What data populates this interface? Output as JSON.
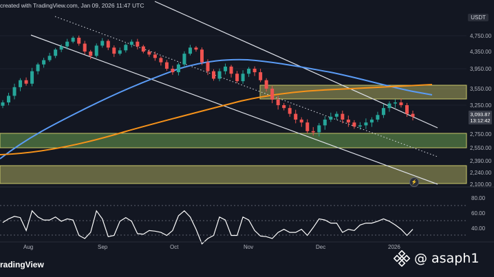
{
  "header": {
    "created_text": "created with TradingView.com, Jan 09, 2026 11:47 UTC"
  },
  "price_axis": {
    "currency": "USDT",
    "labels": [
      "4,750.00",
      "4,350.00",
      "3,950.00",
      "3,550.00",
      "3,250.00",
      "2,750.00",
      "2,550.00",
      "2,390.00",
      "2,240.00",
      "2,100.00"
    ],
    "current_price": "3,093.87",
    "countdown": "13:12:42"
  },
  "rsi_axis": {
    "labels": [
      "80.00",
      "60.00",
      "40.00"
    ]
  },
  "time_axis": {
    "labels": [
      "Aug",
      "Sep",
      "Oct",
      "Nov",
      "Dec",
      "2026"
    ]
  },
  "footer": {
    "logo_text": "radingView",
    "watermark": "@ asaph1"
  },
  "colors": {
    "background": "#131722",
    "candle_up": "#26a69a",
    "candle_down": "#ef5350",
    "ma_blue": "#5b9cf6",
    "ma_orange": "#f7931a",
    "resistance_zone": "#c9c76a",
    "support_zone": "#7fbf5a",
    "rsi_line": "#ffffff"
  },
  "chart_data": {
    "type": "candlestick",
    "title": "",
    "series": [
      {
        "name": "",
        "values": [
          3300,
          3420,
          3580,
          3720,
          3650,
          3900,
          4050,
          4150,
          4250,
          4400,
          4480,
          4600,
          4700,
          4550,
          4350,
          4250,
          4500,
          4620,
          4450,
          4300,
          4380,
          4520,
          4600,
          4480,
          4350,
          4280,
          4200,
          4100,
          3950,
          3880,
          4050,
          4300,
          4450,
          4400,
          4100,
          3900,
          3750,
          3900,
          4000,
          3850,
          3700,
          3850,
          3950,
          3880,
          3720,
          3550,
          3350,
          3250,
          3200,
          3100,
          3000,
          2950,
          2800,
          2780,
          2900,
          3000,
          3050,
          3100,
          3000,
          2950,
          2880,
          2900,
          2950,
          3000,
          3080,
          3200,
          3280,
          3300,
          3250,
          3100,
          3050
        ]
      }
    ],
    "moving_averages": [
      "blue",
      "orange"
    ],
    "rsi": {
      "levels": [
        80,
        60,
        40
      ]
    }
  }
}
